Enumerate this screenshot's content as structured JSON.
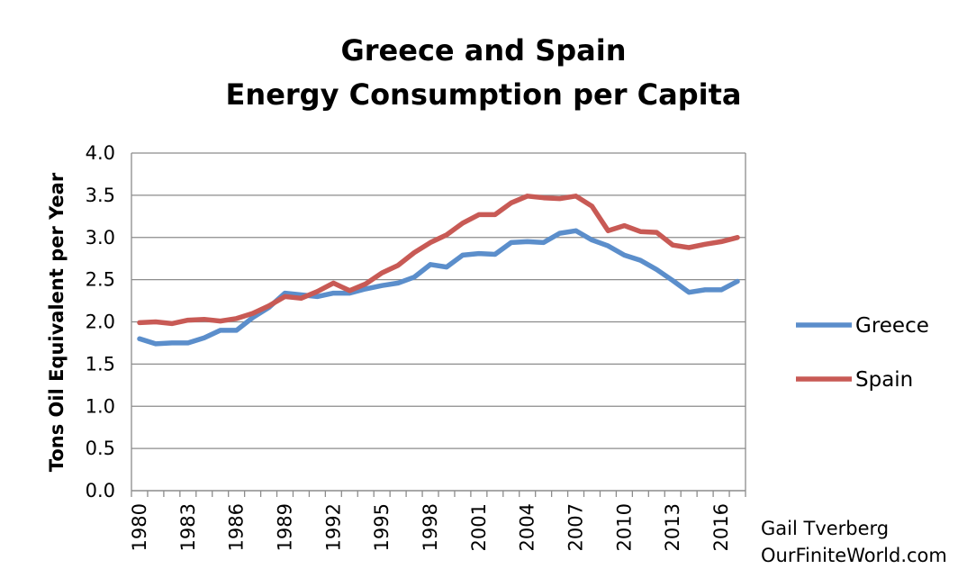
{
  "chart_data": {
    "type": "line",
    "title_line1": "Greece and Spain",
    "title_line2": "Energy Consumption per Capita",
    "ylabel": "Tons Oil Equivalent per Year",
    "xlabel": "",
    "ylim": [
      0,
      4
    ],
    "yticks": [
      "0.0",
      "0.5",
      "1.0",
      "1.5",
      "2.0",
      "2.5",
      "3.0",
      "3.5",
      "4.0"
    ],
    "x": [
      1980,
      1981,
      1982,
      1983,
      1984,
      1985,
      1986,
      1987,
      1988,
      1989,
      1990,
      1991,
      1992,
      1993,
      1994,
      1995,
      1996,
      1997,
      1998,
      1999,
      2000,
      2001,
      2002,
      2003,
      2004,
      2005,
      2006,
      2007,
      2008,
      2009,
      2010,
      2011,
      2012,
      2013,
      2014,
      2015,
      2016,
      2017
    ],
    "xtick_labels": [
      "1980",
      "1983",
      "1986",
      "1989",
      "1992",
      "1995",
      "1998",
      "2001",
      "2004",
      "2007",
      "2010",
      "2013",
      "2016"
    ],
    "grid": true,
    "legend": "right",
    "series": [
      {
        "name": "Greece",
        "color": "#5b8ecb",
        "values": [
          1.8,
          1.74,
          1.75,
          1.75,
          1.81,
          1.9,
          1.9,
          2.05,
          2.17,
          2.34,
          2.32,
          2.3,
          2.34,
          2.34,
          2.39,
          2.43,
          2.46,
          2.53,
          2.68,
          2.65,
          2.79,
          2.81,
          2.8,
          2.94,
          2.95,
          2.94,
          3.05,
          3.08,
          2.97,
          2.9,
          2.79,
          2.73,
          2.62,
          2.49,
          2.35,
          2.38,
          2.38,
          2.48
        ]
      },
      {
        "name": "Spain",
        "color": "#c85a55",
        "values": [
          1.99,
          2.0,
          1.98,
          2.02,
          2.03,
          2.01,
          2.04,
          2.1,
          2.19,
          2.3,
          2.28,
          2.36,
          2.46,
          2.37,
          2.45,
          2.58,
          2.67,
          2.82,
          2.94,
          3.03,
          3.17,
          3.27,
          3.27,
          3.41,
          3.49,
          3.47,
          3.46,
          3.49,
          3.37,
          3.08,
          3.14,
          3.07,
          3.06,
          2.91,
          2.88,
          2.92,
          2.95,
          3.0
        ]
      }
    ]
  },
  "credit": {
    "author": "Gail Tverberg",
    "site": "OurFiniteWorld.com"
  }
}
